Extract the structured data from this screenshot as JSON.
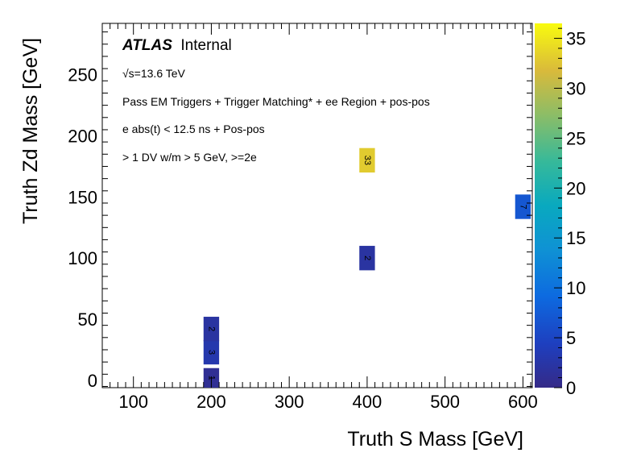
{
  "chart_data": {
    "type": "heatmap",
    "xlabel": "Truth S Mass [GeV]",
    "ylabel": "Truth Zd Mass [GeV]",
    "xlim": [
      60,
      612
    ],
    "ylim": [
      -6,
      292
    ],
    "xticks": [
      100,
      200,
      300,
      400,
      500,
      600
    ],
    "yticks": [
      0,
      50,
      100,
      150,
      200,
      250
    ],
    "zlim": [
      0,
      36.5
    ],
    "zticks": [
      0,
      5,
      10,
      15,
      20,
      25,
      30,
      35
    ],
    "bin_width_x": 20,
    "bin_height_y": 20,
    "cells": [
      {
        "x": 200,
        "y": 0,
        "value": 1
      },
      {
        "x": 200,
        "y": 23,
        "value": 3
      },
      {
        "x": 200,
        "y": 42,
        "value": 2
      },
      {
        "x": 400,
        "y": 100,
        "value": 2
      },
      {
        "x": 400,
        "y": 180,
        "value": 33
      },
      {
        "x": 600,
        "y": 142,
        "value": 7
      }
    ],
    "annotations": {
      "atlas_bold": "ATLAS",
      "atlas_rest": "Internal",
      "sqrt_symbol": "√s=13.6 TeV",
      "line2": "Pass EM Triggers + Trigger Matching* + ee Region + pos-pos",
      "line3": "e abs(t) < 12.5 ns + Pos-pos",
      "line4": "> 1 DV w/m > 5 GeV, >=2e"
    }
  }
}
